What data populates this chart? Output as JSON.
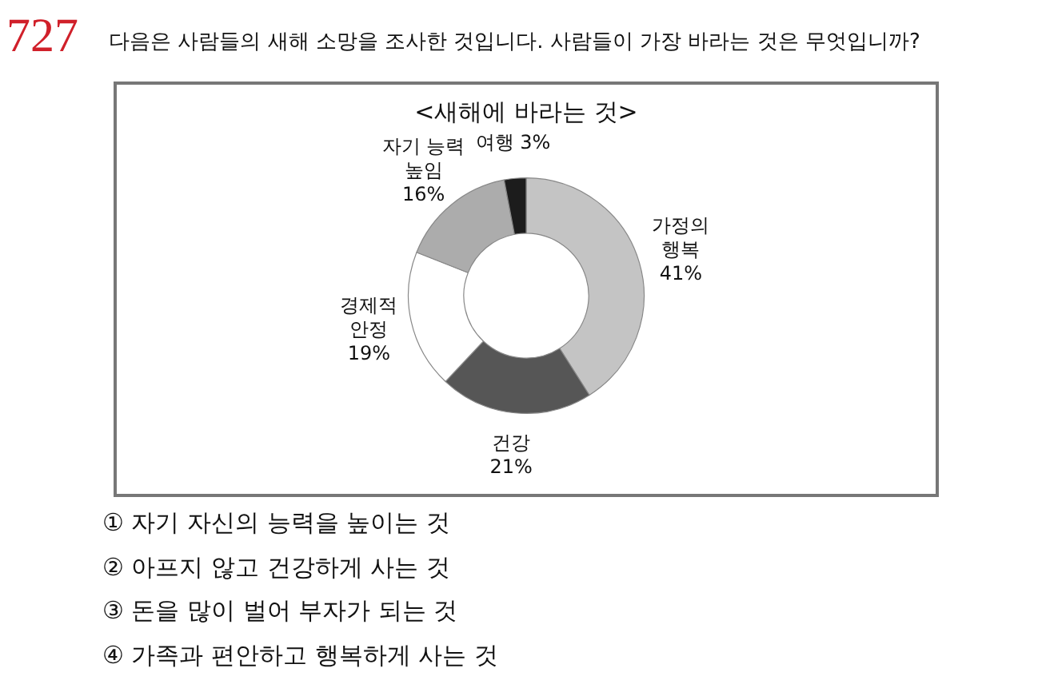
{
  "chart_data": {
    "type": "donut",
    "title": "<새해에 바라는 것>",
    "categories": [
      "가정의 행복",
      "건강",
      "경제적 안정",
      "자기 능력 높임",
      "여행"
    ],
    "values": [
      41,
      21,
      19,
      16,
      3
    ],
    "value_labels": [
      "41%",
      "21%",
      "19%",
      "16%",
      "3%"
    ],
    "colors": [
      "#c4c4c4",
      "#565656",
      "#ffffff",
      "#acacac",
      "#1c1c1c"
    ],
    "legend": false,
    "annotations": [
      "727",
      "다음은 사람들의 새해 소망을 조사한 것입니다. 사람들이 가장 바라는 것은 무엇입니까?",
      "① 자기 자신의 능력을 높이는 것",
      "② 아프지 않고 건강하게 사는 것",
      "③ 돈을 많이 벌어 부자가 되는 것",
      "④ 가족과 편안하고 행복하게 사는 것"
    ]
  }
}
